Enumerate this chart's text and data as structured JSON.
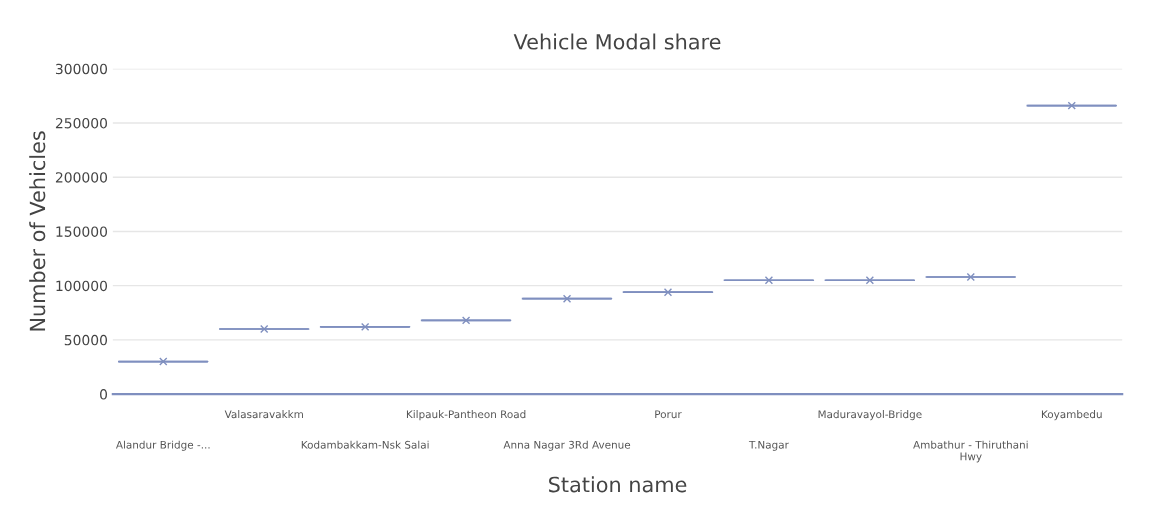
{
  "chart_data": {
    "type": "box",
    "title": "Vehicle Modal share",
    "xlabel": "Station name",
    "ylabel": "Number of Vehicles",
    "categories": [
      "Alandur Bridge -...",
      "Valasaravakkm",
      "Kodambakkam-Nsk Salai",
      "Kilpauk-Pantheon Road",
      "Anna Nagar 3Rd Avenue",
      "Porur",
      "T.Nagar",
      "Maduravayol-Bridge",
      "Ambathur - Thiruthani\nHwy",
      "Koyambedu"
    ],
    "color": "#7f8fbf",
    "boxes": [
      {
        "low": 30000,
        "q1": 30000,
        "median": 30000,
        "q3": 30000,
        "high": 30000,
        "mean": 30000
      },
      {
        "low": 60000,
        "q1": 60000,
        "median": 60000,
        "q3": 60000,
        "high": 60000,
        "mean": 60000
      },
      {
        "low": 62000,
        "q1": 62000,
        "median": 62000,
        "q3": 62000,
        "high": 62000,
        "mean": 62000
      },
      {
        "low": 68000,
        "q1": 68000,
        "median": 68000,
        "q3": 68000,
        "high": 68000,
        "mean": 68000
      },
      {
        "low": 88000,
        "q1": 88000,
        "median": 88000,
        "q3": 88000,
        "high": 88000,
        "mean": 88000
      },
      {
        "low": 94000,
        "q1": 94000,
        "median": 94000,
        "q3": 94000,
        "high": 94000,
        "mean": 94000
      },
      {
        "low": 105000,
        "q1": 105000,
        "median": 105000,
        "q3": 105000,
        "high": 105000,
        "mean": 105000
      },
      {
        "low": 105000,
        "q1": 105000,
        "median": 105000,
        "q3": 105000,
        "high": 105000,
        "mean": 105000
      },
      {
        "low": 108000,
        "q1": 108000,
        "median": 108000,
        "q3": 108000,
        "high": 108000,
        "mean": 108000
      },
      {
        "low": 266000,
        "q1": 266000,
        "median": 266000,
        "q3": 266000,
        "high": 266000,
        "mean": 266000
      }
    ],
    "ylim": [
      0,
      300000
    ],
    "yticks": [
      0,
      50000,
      100000,
      150000,
      200000,
      250000,
      300000
    ],
    "grid": "y",
    "marker": "cross",
    "legend": false
  }
}
